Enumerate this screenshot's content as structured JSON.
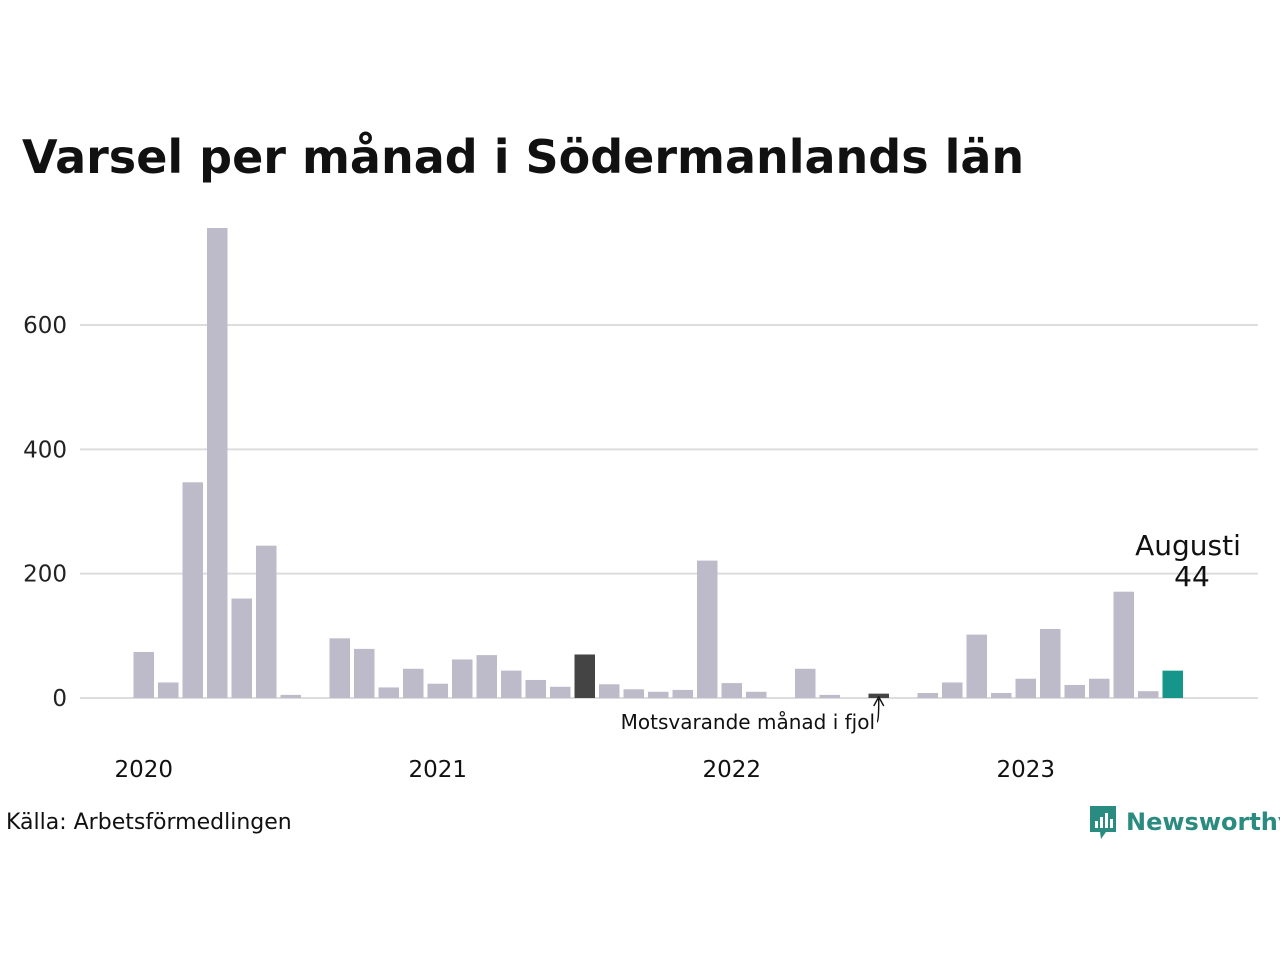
{
  "title": "Varsel per månad i Södermanlands län",
  "source": "Källa: Arbetsförmedlingen",
  "brand": "Newsworthy",
  "colors": {
    "bar": "#bdbbc9",
    "previous_year": "#444444",
    "current": "#16958a",
    "grid": "#dddddd",
    "brand": "#2a8c80"
  },
  "chart_data": {
    "type": "bar",
    "y_ticks": [
      0,
      200,
      400,
      600
    ],
    "ylim": [
      0,
      760
    ],
    "grid": true,
    "year_labels": [
      {
        "label": "2020",
        "index": 0
      },
      {
        "label": "2021",
        "index": 12
      },
      {
        "label": "2022",
        "index": 24
      },
      {
        "label": "2023",
        "index": 36
      }
    ],
    "values": [
      74,
      25,
      347,
      756,
      160,
      245,
      5,
      0,
      96,
      79,
      17,
      47,
      23,
      62,
      69,
      44,
      29,
      18,
      70,
      22,
      14,
      10,
      13,
      221,
      24,
      10,
      0,
      47,
      5,
      0,
      7,
      0,
      8,
      25,
      102,
      8,
      31,
      111,
      21,
      31,
      171,
      11,
      44
    ],
    "previous_year_indices": [
      18,
      30
    ],
    "current_index": 42,
    "annotation_previous": "Motsvarande månad i fjol",
    "highlight_month": "Augusti",
    "highlight_value": "44"
  }
}
